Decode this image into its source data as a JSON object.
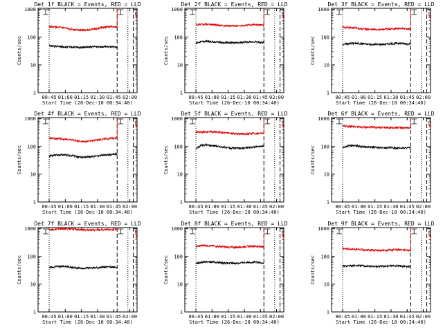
{
  "figure": {
    "axis": {
      "ylabel": "Counts/sec",
      "xlabel": "Start Time (26-Dec-10 00:34:40)",
      "yticks": [
        "1",
        "10",
        "100",
        "1000"
      ],
      "ylim": [
        1,
        1100
      ],
      "xticks": [
        "00:45",
        "01:00",
        "01:15",
        "01:30",
        "01:45",
        "02:00"
      ]
    },
    "colors": {
      "events": "#000000",
      "lld": "#dd0000"
    }
  },
  "chart_data": [
    {
      "type": "line",
      "title": "Det 1f BLACK = Events, RED = LLD",
      "x_start": "00:45",
      "x_end": "01:48",
      "series": [
        {
          "name": "Events",
          "color": "#000000",
          "values": [
            48,
            47,
            46,
            45,
            44,
            44,
            43,
            43,
            44,
            45,
            46,
            46,
            45,
            44,
            43
          ]
        },
        {
          "name": "LLD",
          "color": "#dd0000",
          "values": [
            240,
            235,
            225,
            215,
            200,
            190,
            185,
            180,
            185,
            195,
            210,
            225,
            235,
            240,
            230
          ]
        }
      ],
      "saa_rise": [
        800,
        1200
      ]
    },
    {
      "type": "line",
      "title": "Det 2f BLACK = Events, RED = LLD",
      "x_start": "00:45",
      "x_end": "01:48",
      "series": [
        {
          "name": "Events",
          "color": "#000000",
          "values": [
            60,
            70,
            72,
            70,
            68,
            66,
            64,
            63,
            63,
            64,
            66,
            68,
            68,
            66,
            64
          ]
        },
        {
          "name": "LLD",
          "color": "#dd0000",
          "values": [
            280,
            290,
            295,
            290,
            280,
            270,
            262,
            258,
            255,
            258,
            265,
            275,
            280,
            275,
            270
          ]
        }
      ],
      "saa_rise": [
        800,
        1200
      ]
    },
    {
      "type": "line",
      "title": "Det 3f BLACK = Events, RED = LLD",
      "x_start": "00:45",
      "x_end": "01:48",
      "series": [
        {
          "name": "Events",
          "color": "#000000",
          "values": [
            55,
            58,
            60,
            60,
            58,
            56,
            55,
            55,
            55,
            56,
            58,
            60,
            60,
            58,
            56
          ]
        },
        {
          "name": "LLD",
          "color": "#dd0000",
          "values": [
            230,
            225,
            220,
            210,
            200,
            195,
            190,
            188,
            190,
            195,
            200,
            205,
            205,
            200,
            195
          ]
        }
      ],
      "saa_rise": [
        800,
        1200
      ]
    },
    {
      "type": "line",
      "title": "Det 4f BLACK = Events, RED = LLD",
      "x_start": "00:45",
      "x_end": "01:48",
      "series": [
        {
          "name": "Events",
          "color": "#000000",
          "values": [
            45,
            48,
            50,
            50,
            48,
            46,
            42,
            40,
            42,
            44,
            46,
            48,
            50,
            52,
            54
          ]
        },
        {
          "name": "LLD",
          "color": "#dd0000",
          "values": [
            200,
            195,
            190,
            185,
            175,
            170,
            160,
            150,
            155,
            165,
            175,
            185,
            190,
            200,
            210
          ]
        }
      ],
      "saa_rise": [
        800,
        1200
      ]
    },
    {
      "type": "line",
      "title": "Det 5f BLACK = Events, RED = LLD",
      "x_start": "00:45",
      "x_end": "01:48",
      "series": [
        {
          "name": "Events",
          "color": "#000000",
          "values": [
            80,
            110,
            115,
            110,
            105,
            98,
            92,
            88,
            86,
            86,
            88,
            92,
            96,
            100,
            105
          ]
        },
        {
          "name": "LLD",
          "color": "#dd0000",
          "values": [
            330,
            330,
            340,
            345,
            335,
            320,
            305,
            295,
            290,
            285,
            285,
            290,
            295,
            300,
            305
          ]
        }
      ],
      "saa_rise": [
        800,
        1200
      ]
    },
    {
      "type": "line",
      "title": "Det 6f BLACK = Events, RED = LLD",
      "x_start": "00:45",
      "x_end": "01:48",
      "series": [
        {
          "name": "Events",
          "color": "#000000",
          "values": [
            90,
            105,
            108,
            104,
            100,
            96,
            94,
            92,
            90,
            90,
            89,
            88,
            88,
            88,
            88
          ]
        },
        {
          "name": "LLD",
          "color": "#dd0000",
          "values": [
            560,
            540,
            520,
            510,
            500,
            495,
            490,
            485,
            480,
            480,
            478,
            476,
            475,
            475,
            475
          ]
        }
      ],
      "saa_rise": [
        800,
        1200
      ]
    },
    {
      "type": "line",
      "title": "Det 7f BLACK = Events, RED = LLD",
      "x_start": "00:45",
      "x_end": "01:48",
      "series": [
        {
          "name": "Events",
          "color": "#000000",
          "values": [
            40,
            42,
            44,
            44,
            42,
            40,
            38,
            38,
            38,
            39,
            40,
            41,
            42,
            42,
            40
          ]
        },
        {
          "name": "LLD",
          "color": "#dd0000",
          "values": [
            900,
            950,
            1000,
            1000,
            980,
            960,
            940,
            920,
            910,
            900,
            900,
            910,
            920,
            930,
            920
          ]
        }
      ],
      "saa_rise": [
        900,
        1100
      ]
    },
    {
      "type": "line",
      "title": "Det 8f BLACK = Events, RED = LLD",
      "x_start": "00:45",
      "x_end": "01:48",
      "series": [
        {
          "name": "Events",
          "color": "#000000",
          "values": [
            55,
            62,
            65,
            64,
            62,
            60,
            58,
            57,
            57,
            58,
            60,
            62,
            62,
            60,
            58
          ]
        },
        {
          "name": "LLD",
          "color": "#dd0000",
          "values": [
            230,
            245,
            250,
            245,
            235,
            225,
            218,
            215,
            215,
            218,
            225,
            232,
            235,
            230,
            225
          ]
        }
      ],
      "saa_rise": [
        800,
        1200
      ]
    },
    {
      "type": "line",
      "title": "Det 9f BLACK = Events, RED = LLD",
      "x_start": "00:45",
      "x_end": "01:48",
      "series": [
        {
          "name": "Events",
          "color": "#000000",
          "values": [
            45,
            46,
            47,
            47,
            46,
            45,
            44,
            44,
            44,
            45,
            46,
            46,
            45,
            44,
            43
          ]
        },
        {
          "name": "LLD",
          "color": "#dd0000",
          "values": [
            190,
            188,
            185,
            180,
            175,
            170,
            168,
            166,
            166,
            168,
            172,
            175,
            175,
            170,
            165
          ]
        }
      ],
      "saa_rise": [
        800,
        1200
      ]
    }
  ]
}
